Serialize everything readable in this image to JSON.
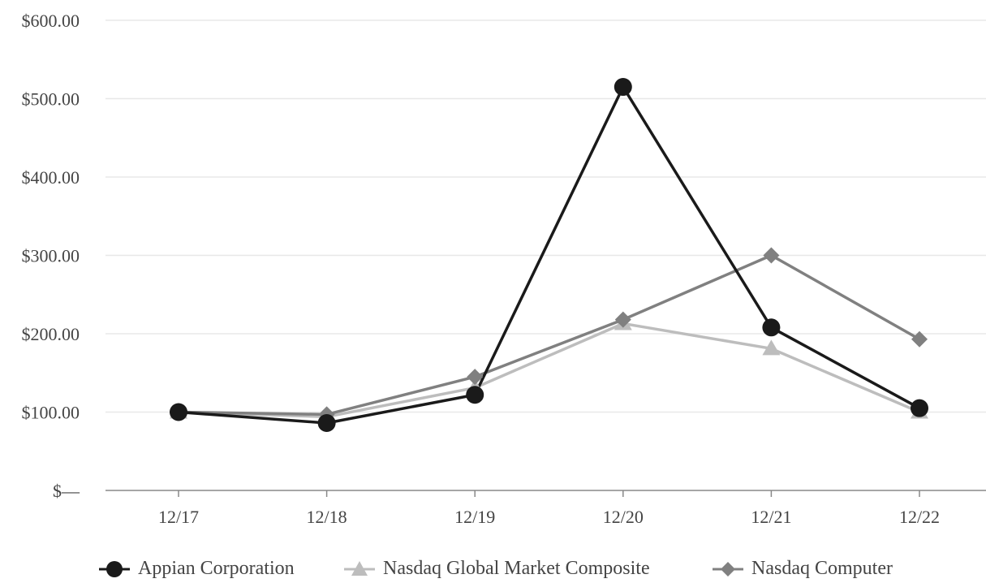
{
  "chart_data": {
    "type": "line",
    "title": "",
    "xlabel": "",
    "ylabel": "",
    "categories": [
      "12/17",
      "12/18",
      "12/19",
      "12/20",
      "12/21",
      "12/22"
    ],
    "ylim": [
      0,
      600
    ],
    "y_ticks": [
      {
        "value": 0,
        "label": "$—"
      },
      {
        "value": 100,
        "label": "$100.00"
      },
      {
        "value": 200,
        "label": "$200.00"
      },
      {
        "value": 300,
        "label": "$300.00"
      },
      {
        "value": 400,
        "label": "$400.00"
      },
      {
        "value": 500,
        "label": "$500.00"
      },
      {
        "value": 600,
        "label": "$600.00"
      }
    ],
    "grid": true,
    "legend_position": "bottom",
    "series": [
      {
        "name": "Appian Corporation",
        "values": [
          100,
          86,
          122,
          515,
          208,
          105
        ],
        "color": "#1a1a1a",
        "marker": "circle"
      },
      {
        "name": "Nasdaq Global Market Composite",
        "values": [
          100,
          94,
          131,
          213,
          181,
          100
        ],
        "color": "#bdbdbd",
        "marker": "triangle"
      },
      {
        "name": "Nasdaq Computer",
        "values": [
          100,
          97,
          145,
          218,
          300,
          193
        ],
        "color": "#808080",
        "marker": "diamond"
      }
    ]
  }
}
